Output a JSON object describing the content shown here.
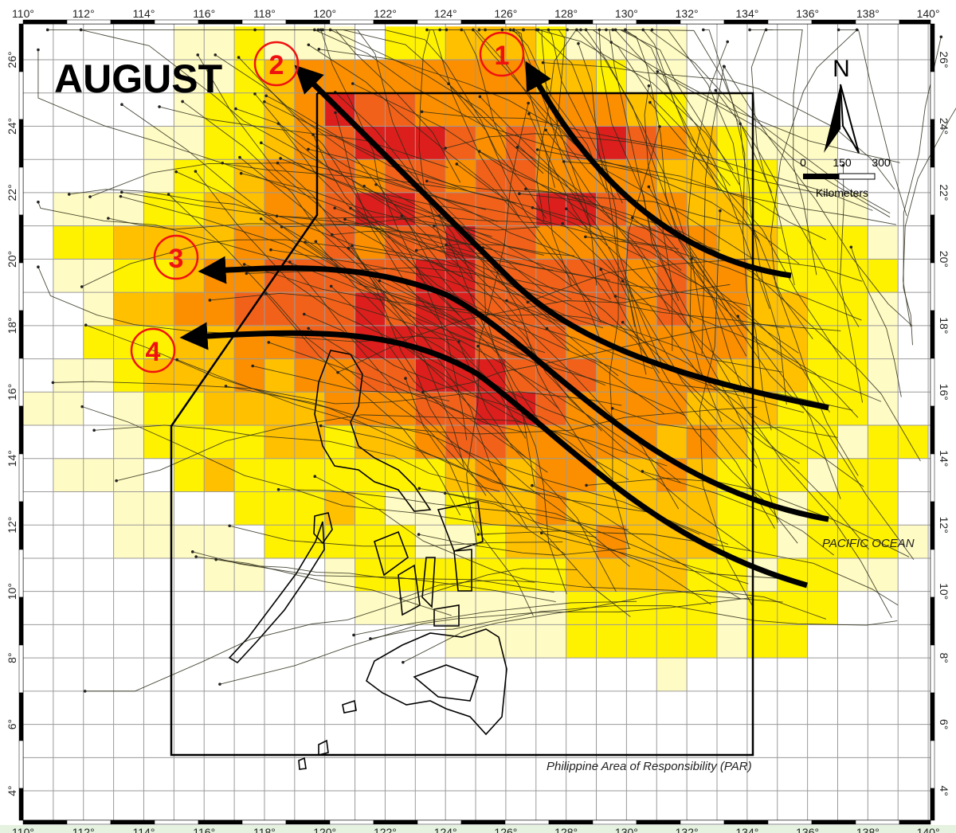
{
  "map": {
    "title": "AUGUST",
    "ocean_label": "PACIFIC OCEAN",
    "par_label": "Philippine Area of Responsibility (PAR)",
    "north_label": "N",
    "scale": {
      "ticks": [
        "0",
        "150",
        "300"
      ],
      "unit": "Kilometers"
    },
    "track_cluster_labels": [
      "1",
      "2",
      "3",
      "4"
    ],
    "lon_labels": [
      "110°",
      "112°",
      "114°",
      "116°",
      "118°",
      "120°",
      "122°",
      "124°",
      "126°",
      "128°",
      "130°",
      "132°",
      "134°",
      "136°",
      "138°",
      "140°"
    ],
    "lat_labels": [
      "26°",
      "24°",
      "22°",
      "20°",
      "18°",
      "16°",
      "14°",
      "12°",
      "10°",
      "8°",
      "6°",
      "4°"
    ],
    "lon_range": [
      110,
      140
    ],
    "lat_range": [
      3,
      27
    ],
    "grid_cell_degrees": 1,
    "density_colors": {
      "1": "#fffbc4",
      "2": "#fff200",
      "3": "#ffc000",
      "4": "#fb8f00",
      "5": "#f2611a",
      "6": "#dc1f1c"
    },
    "density_grid_rows_from_27N": [
      "000001121110223332111100000000",
      "000001123444444443321100000000",
      "000001223465544444443211000000",
      "000011223456665454565432111000",
      "000012234454554554444332211000",
      "011122334456655556654433211100",
      "022333344454556554445543322210",
      "011223445555566555554544322220",
      "001334455556566555554544332210",
      "002223344556666555444444332210",
      "011233343445566655544443332210",
      "110122333344455665444433322210",
      "000122223323345544444343222122",
      "011102322222223434433432221220",
      "000110022232112334333332212220",
      "000111102222211233343332212221",
      "000000110012222222333322122110",
      "000000000001111111222221222000",
      "000000000000001111222221220000",
      "000000000000000000000100000000",
      "000000000000000000000000000000",
      "000000000000000000000000000000",
      "000000000000000000000000000000",
      "000000000000000000000000000000"
    ],
    "label_color": "#f01010"
  }
}
